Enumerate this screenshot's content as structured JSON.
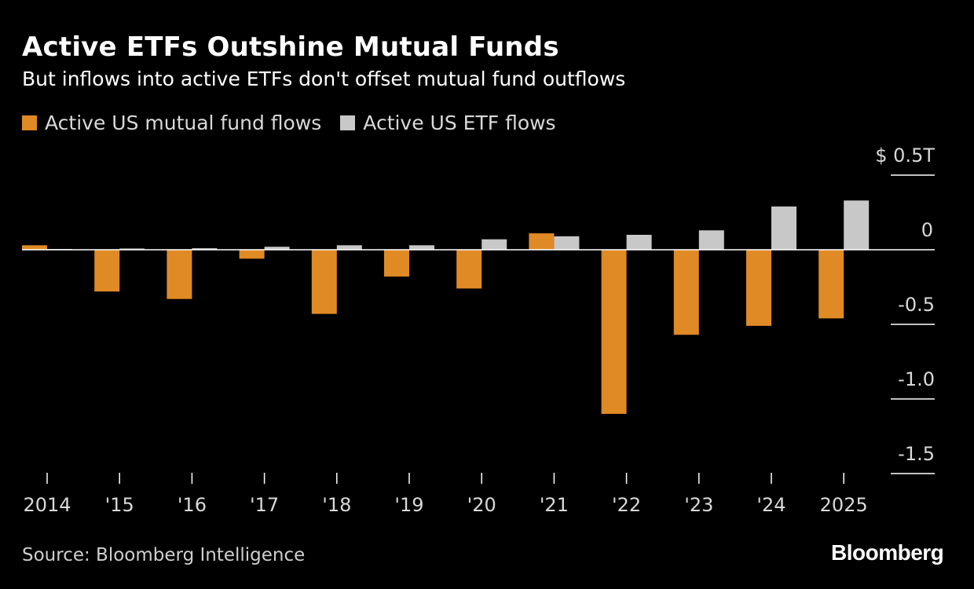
{
  "header": {
    "title": "Active ETFs Outshine Mutual Funds",
    "subtitle": "But inflows into active ETFs don't offset mutual fund outflows"
  },
  "footer": {
    "source": "Source: Bloomberg Intelligence",
    "brand": "Bloomberg"
  },
  "colors": {
    "background": "#000000",
    "mutual_fund": "#df8a25",
    "etf": "#c8c8c8",
    "axis": "#ffffff"
  },
  "chart_data": {
    "type": "bar",
    "title": "Active ETFs Outshine Mutual Funds",
    "subtitle": "But inflows into active ETFs don't offset mutual fund outflows",
    "categories": [
      "2014",
      "'15",
      "'16",
      "'17",
      "'18",
      "'19",
      "'20",
      "'21",
      "'22",
      "'23",
      "'24",
      "2025"
    ],
    "series": [
      {
        "name": "Active US mutual fund flows",
        "color": "#df8a25",
        "values": [
          0.03,
          -0.28,
          -0.33,
          -0.06,
          -0.43,
          -0.18,
          -0.26,
          0.11,
          -1.1,
          -0.57,
          -0.51,
          -0.46
        ]
      },
      {
        "name": "Active US ETF flows",
        "color": "#c8c8c8",
        "values": [
          0.005,
          0.008,
          0.01,
          0.02,
          0.03,
          0.03,
          0.07,
          0.09,
          0.1,
          0.13,
          0.29,
          0.33
        ]
      }
    ],
    "yticks": [
      {
        "value": 0.5,
        "label": "$ 0.5T"
      },
      {
        "value": 0,
        "label": "0"
      },
      {
        "value": -0.5,
        "label": "-0.5"
      },
      {
        "value": -1.0,
        "label": "-1.0"
      },
      {
        "value": -1.5,
        "label": "-1.5"
      }
    ],
    "ylim": [
      -1.5,
      0.5
    ],
    "xlabel": "",
    "ylabel": "",
    "legend_position": "top-left",
    "grid": false
  }
}
